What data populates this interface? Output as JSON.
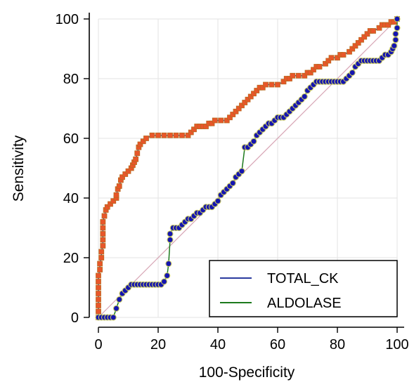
{
  "chart_data": {
    "type": "line",
    "xlabel": "100-Specificity",
    "ylabel": "Sensitivity",
    "xlim": [
      0,
      100
    ],
    "ylim": [
      0,
      100
    ],
    "x_ticks": [
      "0",
      "20",
      "40",
      "60",
      "80",
      "100"
    ],
    "y_ticks": [
      "0",
      "20",
      "40",
      "60",
      "80",
      "100"
    ],
    "grid": true,
    "reference_line": true,
    "legend_position": "bottom-right",
    "colors": {
      "reference": "#d7a5b5",
      "grid": "#e3e3e3",
      "axis": "#000000",
      "total_ck_line": "#2a3a9e",
      "total_ck_marker_fill": "#e8562a",
      "total_ck_marker_edge": "#b86a1e",
      "aldolase_line": "#1d7a1d",
      "aldolase_marker_fill": "#1515b0",
      "aldolase_marker_edge": "#c8c860"
    },
    "series": [
      {
        "name": "TOTAL_CK",
        "marker": "square",
        "points": [
          [
            0,
            0
          ],
          [
            0,
            2
          ],
          [
            0,
            4
          ],
          [
            0,
            6
          ],
          [
            0,
            8
          ],
          [
            0,
            10
          ],
          [
            0,
            12
          ],
          [
            0,
            14
          ],
          [
            0.5,
            16
          ],
          [
            0.5,
            18
          ],
          [
            1,
            20
          ],
          [
            1,
            22
          ],
          [
            1.5,
            24
          ],
          [
            1.5,
            26
          ],
          [
            1.5,
            28
          ],
          [
            1.5,
            30
          ],
          [
            1.5,
            32
          ],
          [
            2,
            34
          ],
          [
            2.5,
            36
          ],
          [
            3,
            37
          ],
          [
            4,
            38
          ],
          [
            5,
            39
          ],
          [
            6,
            40
          ],
          [
            6,
            41
          ],
          [
            6.5,
            43
          ],
          [
            7,
            44
          ],
          [
            7.5,
            46
          ],
          [
            8,
            47
          ],
          [
            9,
            48
          ],
          [
            10,
            49
          ],
          [
            11,
            50
          ],
          [
            11.5,
            51
          ],
          [
            12,
            52
          ],
          [
            12.5,
            53
          ],
          [
            13,
            55
          ],
          [
            13.5,
            57
          ],
          [
            14,
            58
          ],
          [
            15,
            59
          ],
          [
            16,
            60
          ],
          [
            18,
            61
          ],
          [
            20,
            61
          ],
          [
            22,
            61
          ],
          [
            24,
            61
          ],
          [
            26,
            61
          ],
          [
            28,
            61
          ],
          [
            30,
            61
          ],
          [
            31,
            62
          ],
          [
            32,
            63
          ],
          [
            33,
            64
          ],
          [
            34,
            64
          ],
          [
            35,
            64
          ],
          [
            36,
            64
          ],
          [
            37,
            65
          ],
          [
            38,
            65
          ],
          [
            39,
            66
          ],
          [
            41,
            66
          ],
          [
            43,
            66
          ],
          [
            44,
            67
          ],
          [
            45,
            68
          ],
          [
            46,
            69
          ],
          [
            47,
            70
          ],
          [
            48,
            71
          ],
          [
            49,
            72
          ],
          [
            50,
            73
          ],
          [
            51,
            74
          ],
          [
            52,
            75
          ],
          [
            53,
            76
          ],
          [
            54,
            77
          ],
          [
            55,
            77
          ],
          [
            56,
            78
          ],
          [
            58,
            78
          ],
          [
            60,
            78
          ],
          [
            62,
            79
          ],
          [
            63,
            80
          ],
          [
            64,
            80
          ],
          [
            65,
            81
          ],
          [
            67,
            81
          ],
          [
            69,
            81
          ],
          [
            70,
            82
          ],
          [
            71,
            82
          ],
          [
            72,
            83
          ],
          [
            73,
            84
          ],
          [
            74,
            84
          ],
          [
            76,
            85
          ],
          [
            77,
            86
          ],
          [
            78,
            87
          ],
          [
            80,
            87
          ],
          [
            81,
            88
          ],
          [
            82,
            88
          ],
          [
            84,
            89
          ],
          [
            85,
            90
          ],
          [
            86,
            91
          ],
          [
            87,
            92
          ],
          [
            88,
            93
          ],
          [
            89,
            94
          ],
          [
            90,
            95
          ],
          [
            91,
            96
          ],
          [
            92,
            96
          ],
          [
            94,
            97
          ],
          [
            95,
            98
          ],
          [
            96,
            98
          ],
          [
            97,
            98
          ],
          [
            98,
            99
          ],
          [
            99,
            99
          ],
          [
            100,
            100
          ]
        ]
      },
      {
        "name": "ALDOLASE",
        "marker": "circle",
        "points": [
          [
            0,
            0
          ],
          [
            1,
            0
          ],
          [
            2,
            0
          ],
          [
            3,
            0
          ],
          [
            4,
            0
          ],
          [
            5,
            0
          ],
          [
            6,
            3
          ],
          [
            7,
            6
          ],
          [
            8,
            8
          ],
          [
            9,
            9
          ],
          [
            10,
            10
          ],
          [
            11,
            11
          ],
          [
            12,
            11
          ],
          [
            13,
            11
          ],
          [
            14,
            11
          ],
          [
            15,
            11
          ],
          [
            16,
            11
          ],
          [
            17,
            11
          ],
          [
            18,
            11
          ],
          [
            19,
            11
          ],
          [
            20,
            11
          ],
          [
            21,
            11
          ],
          [
            22,
            12
          ],
          [
            23,
            14
          ],
          [
            23.5,
            18
          ],
          [
            24,
            26
          ],
          [
            24,
            28
          ],
          [
            25,
            30
          ],
          [
            26,
            30
          ],
          [
            27,
            30
          ],
          [
            28,
            31
          ],
          [
            29,
            32
          ],
          [
            30,
            33
          ],
          [
            31,
            33
          ],
          [
            32,
            34
          ],
          [
            33,
            35
          ],
          [
            34,
            35
          ],
          [
            35,
            36
          ],
          [
            36,
            37
          ],
          [
            37,
            37
          ],
          [
            38,
            37
          ],
          [
            39,
            38
          ],
          [
            40,
            39
          ],
          [
            41,
            41
          ],
          [
            42,
            42
          ],
          [
            43,
            43
          ],
          [
            44,
            44
          ],
          [
            45,
            45
          ],
          [
            46,
            47
          ],
          [
            47,
            48
          ],
          [
            48,
            49
          ],
          [
            49,
            57
          ],
          [
            50,
            57
          ],
          [
            51,
            58
          ],
          [
            52,
            59
          ],
          [
            53,
            61
          ],
          [
            54,
            62
          ],
          [
            55,
            63
          ],
          [
            56,
            64
          ],
          [
            57,
            65
          ],
          [
            58,
            65
          ],
          [
            59,
            66
          ],
          [
            60,
            67
          ],
          [
            61,
            67
          ],
          [
            62,
            67
          ],
          [
            63,
            68
          ],
          [
            64,
            69
          ],
          [
            65,
            70
          ],
          [
            66,
            71
          ],
          [
            67,
            72
          ],
          [
            68,
            73
          ],
          [
            69,
            74
          ],
          [
            70,
            76
          ],
          [
            71,
            77
          ],
          [
            72,
            78
          ],
          [
            73,
            79
          ],
          [
            74,
            79
          ],
          [
            75,
            79
          ],
          [
            76,
            79
          ],
          [
            77,
            79
          ],
          [
            78,
            79
          ],
          [
            79,
            79
          ],
          [
            80,
            79
          ],
          [
            81,
            79
          ],
          [
            82,
            79
          ],
          [
            83,
            80
          ],
          [
            84,
            81
          ],
          [
            85,
            82
          ],
          [
            86,
            84
          ],
          [
            87,
            85
          ],
          [
            88,
            86
          ],
          [
            89,
            86
          ],
          [
            90,
            86
          ],
          [
            91,
            86
          ],
          [
            92,
            86
          ],
          [
            93,
            86
          ],
          [
            94,
            86
          ],
          [
            95,
            87
          ],
          [
            96,
            88
          ],
          [
            97,
            88
          ],
          [
            98,
            89
          ],
          [
            98.5,
            90
          ],
          [
            99,
            91
          ],
          [
            99.5,
            93
          ],
          [
            99.5,
            95
          ],
          [
            100,
            97
          ],
          [
            100,
            100
          ]
        ]
      }
    ]
  }
}
